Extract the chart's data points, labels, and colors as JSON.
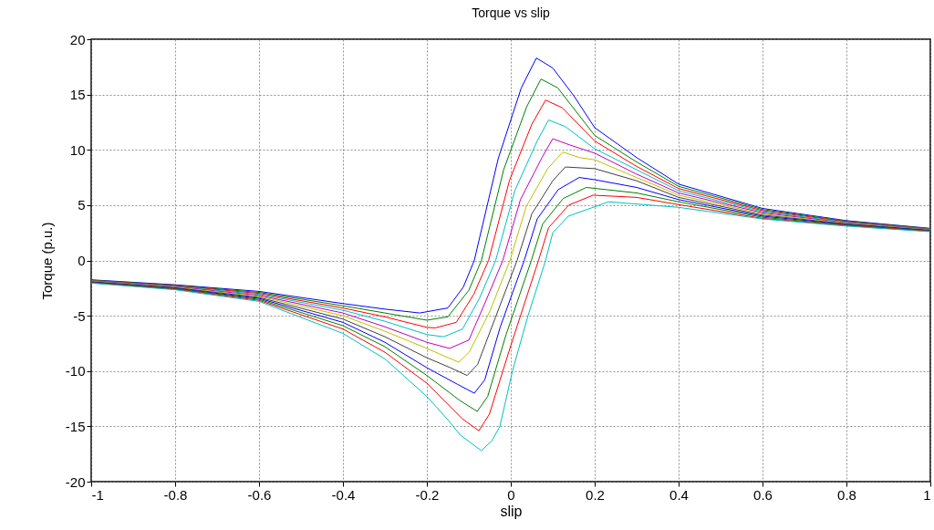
{
  "chart_data": {
    "type": "line",
    "title": "Torque vs slip",
    "xlabel": "slip",
    "ylabel": "Torque (p.u.)",
    "xlim": [
      -1,
      1
    ],
    "xticks": [
      -1,
      -0.8,
      -0.6,
      -0.4,
      -0.2,
      0,
      0.2,
      0.4,
      0.6,
      0.8,
      1
    ],
    "ylim": [
      -20,
      20
    ],
    "yticks": [
      -20,
      -15,
      -10,
      -5,
      0,
      5,
      10,
      15,
      20
    ],
    "grid": true,
    "legend": false,
    "series": [
      {
        "color": "#0000ff",
        "x": [
          -1,
          -0.8,
          -0.6,
          -0.4,
          -0.3,
          -0.217,
          -0.15,
          -0.113,
          -0.087,
          -0.03,
          0.025,
          0.061,
          0.1,
          0.15,
          0.2,
          0.3,
          0.4,
          0.6,
          0.8,
          1
        ],
        "values": [
          -1.75,
          -2.2,
          -2.8,
          -3.9,
          -4.4,
          -4.75,
          -4.3,
          -2.4,
          0,
          9.2,
          15.6,
          18.3,
          17.4,
          14.9,
          12.0,
          9.3,
          6.9,
          4.7,
          3.6,
          2.9
        ]
      },
      {
        "color": "#008000",
        "x": [
          -1,
          -0.8,
          -0.6,
          -0.4,
          -0.3,
          -0.2,
          -0.15,
          -0.1,
          -0.07,
          -0.017,
          0.038,
          0.072,
          0.112,
          0.2,
          0.3,
          0.4,
          0.6,
          0.8,
          1
        ],
        "values": [
          -1.78,
          -2.25,
          -2.89,
          -4.1,
          -4.75,
          -5.4,
          -5.1,
          -2.7,
          0,
          8.2,
          13.9,
          16.4,
          15.6,
          11.3,
          8.9,
          6.7,
          4.6,
          3.55,
          2.87
        ]
      },
      {
        "color": "#ff0000",
        "x": [
          -1,
          -0.8,
          -0.6,
          -0.4,
          -0.3,
          -0.2,
          -0.18,
          -0.13,
          -0.088,
          -0.053,
          -0.003,
          0.05,
          0.083,
          0.123,
          0.2,
          0.3,
          0.4,
          0.6,
          0.8,
          1
        ],
        "values": [
          -1.81,
          -2.29,
          -2.98,
          -4.3,
          -5.1,
          -6.05,
          -6.1,
          -5.6,
          -3.05,
          0,
          7.25,
          12.3,
          14.5,
          13.8,
          10.8,
          8.5,
          6.5,
          4.5,
          3.5,
          2.84
        ]
      },
      {
        "color": "#00bfbf",
        "x": [
          -1,
          -0.8,
          -0.6,
          -0.4,
          -0.3,
          -0.2,
          -0.16,
          -0.115,
          -0.075,
          -0.036,
          0.01,
          0.063,
          0.09,
          0.13,
          0.2,
          0.3,
          0.4,
          0.6,
          0.8,
          1
        ],
        "values": [
          -1.84,
          -2.34,
          -3.07,
          -4.5,
          -5.5,
          -6.7,
          -6.9,
          -6.2,
          -3.45,
          0,
          6.35,
          10.8,
          12.7,
          12.1,
          10.1,
          8.2,
          6.3,
          4.4,
          3.45,
          2.81
        ]
      },
      {
        "color": "#bf00bf",
        "x": [
          -1,
          -0.8,
          -0.6,
          -0.4,
          -0.3,
          -0.2,
          -0.146,
          -0.1,
          -0.063,
          -0.019,
          0.023,
          0.075,
          0.1,
          0.14,
          0.2,
          0.3,
          0.4,
          0.6,
          0.8,
          1
        ],
        "values": [
          -1.87,
          -2.38,
          -3.16,
          -4.75,
          -6.0,
          -7.4,
          -7.95,
          -7.2,
          -3.98,
          0,
          5.5,
          9.35,
          11.0,
          10.45,
          9.7,
          7.8,
          6.1,
          4.3,
          3.4,
          2.78
        ]
      },
      {
        "color": "#bfbf00",
        "x": [
          -1,
          -0.8,
          -0.6,
          -0.4,
          -0.3,
          -0.2,
          -0.164,
          -0.124,
          -0.099,
          -0.05,
          -0.002,
          0.037,
          0.088,
          0.124,
          0.164,
          0.2,
          0.3,
          0.4,
          0.6,
          0.8,
          1
        ],
        "values": [
          -1.9,
          -2.43,
          -3.25,
          -5.0,
          -6.4,
          -7.95,
          -8.55,
          -9.2,
          -8.3,
          -4.6,
          0,
          4.9,
          8.3,
          9.8,
          9.3,
          9.1,
          7.5,
          5.9,
          4.2,
          3.35,
          2.75
        ]
      },
      {
        "color": "#404040",
        "x": [
          -1,
          -0.8,
          -0.6,
          -0.4,
          -0.3,
          -0.2,
          -0.144,
          -0.104,
          -0.079,
          -0.037,
          0.015,
          0.05,
          0.1,
          0.13,
          0.2,
          0.3,
          0.4,
          0.6,
          0.8,
          1
        ],
        "values": [
          -1.93,
          -2.47,
          -3.34,
          -5.3,
          -6.9,
          -8.8,
          -9.7,
          -10.4,
          -9.4,
          -5.2,
          0,
          4.2,
          7.2,
          8.45,
          8.3,
          7.2,
          5.7,
          4.1,
          3.3,
          2.72
        ]
      },
      {
        "color": "#0000ff",
        "x": [
          -1,
          -0.8,
          -0.6,
          -0.4,
          -0.3,
          -0.2,
          -0.127,
          -0.087,
          -0.062,
          -0.025,
          0.032,
          0.063,
          0.113,
          0.163,
          0.2,
          0.3,
          0.4,
          0.6,
          0.8,
          1
        ],
        "values": [
          -1.96,
          -2.52,
          -3.43,
          -5.6,
          -7.4,
          -9.7,
          -11.2,
          -12.0,
          -10.8,
          -6.0,
          0,
          3.75,
          6.4,
          7.5,
          7.3,
          6.6,
          5.5,
          4.0,
          3.25,
          2.69
        ]
      },
      {
        "color": "#008000",
        "x": [
          -1,
          -0.8,
          -0.6,
          -0.4,
          -0.3,
          -0.2,
          -0.12,
          -0.08,
          -0.055,
          -0.012,
          0.049,
          0.076,
          0.125,
          0.18,
          0.3,
          0.4,
          0.6,
          0.8,
          1
        ],
        "values": [
          -1.99,
          -2.56,
          -3.52,
          -5.9,
          -7.8,
          -10.4,
          -12.7,
          -13.65,
          -12.3,
          -6.8,
          0,
          3.3,
          5.6,
          6.6,
          6.1,
          5.3,
          3.9,
          3.2,
          2.66
        ]
      },
      {
        "color": "#ff0000",
        "x": [
          -1,
          -0.8,
          -0.6,
          -0.4,
          -0.3,
          -0.2,
          -0.116,
          -0.076,
          -0.051,
          0,
          0.066,
          0.09,
          0.138,
          0.196,
          0.3,
          0.4,
          0.6,
          0.8,
          1
        ],
        "values": [
          -2.02,
          -2.61,
          -3.61,
          -6.2,
          -8.3,
          -11.1,
          -14.3,
          -15.4,
          -13.9,
          -7.7,
          0,
          2.95,
          5.0,
          5.9,
          5.7,
          5.05,
          3.8,
          3.15,
          2.63
        ]
      },
      {
        "color": "#00bfbf",
        "x": [
          -1,
          -0.8,
          -0.6,
          -0.4,
          -0.3,
          -0.2,
          -0.15,
          -0.12,
          -0.07,
          -0.045,
          -0.026,
          0.004,
          0.041,
          0.083,
          0.1,
          0.137,
          0.233,
          0.3,
          0.4,
          0.6,
          0.8,
          1
        ],
        "values": [
          -2.05,
          -2.65,
          -3.7,
          -6.6,
          -8.9,
          -12.3,
          -14.4,
          -15.8,
          -17.2,
          -16.3,
          -15,
          -10,
          -5,
          0,
          2.5,
          4.0,
          5.3,
          5.1,
          4.8,
          3.75,
          3.1,
          2.6
        ]
      }
    ]
  }
}
